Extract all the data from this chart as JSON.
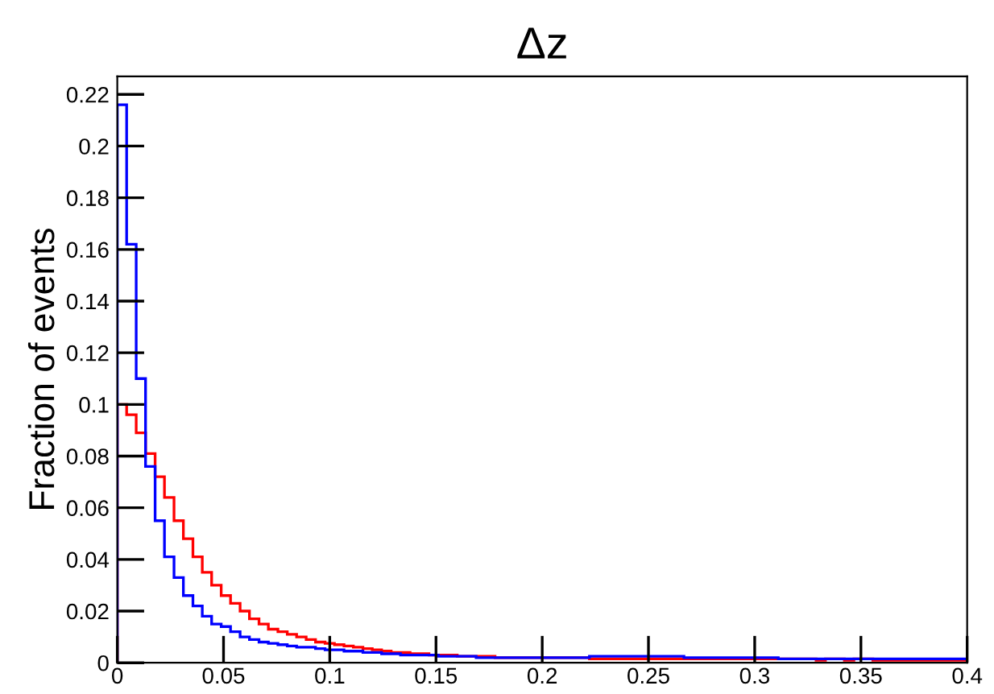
{
  "chart_data": {
    "type": "histogram",
    "title": "Δz",
    "ylabel": "Fraction of events",
    "bins": [
      0,
      0.0044,
      0.0089,
      0.0133,
      0.0178,
      0.0222,
      0.0267,
      0.0311,
      0.0356,
      0.04,
      0.0444,
      0.0489,
      0.0533,
      0.0578,
      0.0622,
      0.0667,
      0.0711,
      0.0756,
      0.08,
      0.0844,
      0.0889,
      0.0933,
      0.0978,
      0.1022,
      0.1067,
      0.1111,
      0.1156,
      0.12,
      0.1244,
      0.1289,
      0.1333,
      0.1378,
      0.1422,
      0.1467,
      0.1511,
      0.1556,
      0.16,
      0.1644,
      0.1689,
      0.1733,
      0.1778,
      0.1822,
      0.1867,
      0.1911,
      0.1956,
      0.2,
      0.2044,
      0.2089,
      0.2133,
      0.2178,
      0.2222,
      0.2267,
      0.2311,
      0.2356,
      0.24,
      0.2444,
      0.2489,
      0.2533,
      0.2578,
      0.2622,
      0.2667,
      0.2711,
      0.2756,
      0.28,
      0.2844,
      0.2889,
      0.2933,
      0.2978,
      0.3022,
      0.3067,
      0.3111,
      0.3156,
      0.32,
      0.3244,
      0.3289,
      0.3333,
      0.3378,
      0.3422,
      0.3467,
      0.3511,
      0.3556,
      0.36,
      0.3644,
      0.3689,
      0.3733,
      0.3778,
      0.3822,
      0.3867,
      0.3911,
      0.3956,
      0.4
    ],
    "series": [
      {
        "color": "#ff0000",
        "values": [
          0.1,
          0.096,
          0.089,
          0.081,
          0.072,
          0.064,
          0.055,
          0.048,
          0.041,
          0.035,
          0.03,
          0.026,
          0.023,
          0.02,
          0.017,
          0.015,
          0.013,
          0.012,
          0.011,
          0.01,
          0.009,
          0.008,
          0.0075,
          0.007,
          0.0065,
          0.006,
          0.0055,
          0.005,
          0.0045,
          0.004,
          0.004,
          0.0035,
          0.0035,
          0.003,
          0.003,
          0.003,
          0.0025,
          0.0025,
          0.0025,
          0.0025,
          0.002,
          0.002,
          0.002,
          0.002,
          0.002,
          0.002,
          0.002,
          0.002,
          0.002,
          0.002,
          0.0015,
          0.0015,
          0.0015,
          0.0015,
          0.0015,
          0.0015,
          0.0015,
          0.0015,
          0.0015,
          0.0015,
          0.0015,
          0.0015,
          0.0015,
          0.0015,
          0.0015,
          0.0015,
          0.0015,
          0.0015,
          0.0015,
          0.0015,
          0.0015,
          0.0015,
          0.0015,
          0.0015,
          0.001,
          0.0015,
          0.0015,
          0.001,
          0.0015,
          0.0015,
          0.001,
          0.001,
          0.001,
          0.001,
          0.001,
          0.001,
          0.001,
          0.001,
          0.001,
          0.001
        ]
      },
      {
        "color": "#0000ff",
        "values": [
          0.216,
          0.162,
          0.11,
          0.076,
          0.055,
          0.041,
          0.033,
          0.026,
          0.022,
          0.018,
          0.015,
          0.014,
          0.012,
          0.01,
          0.009,
          0.008,
          0.0075,
          0.007,
          0.0065,
          0.006,
          0.006,
          0.0055,
          0.005,
          0.005,
          0.0045,
          0.0045,
          0.004,
          0.004,
          0.0035,
          0.0035,
          0.003,
          0.003,
          0.003,
          0.003,
          0.0025,
          0.0025,
          0.0025,
          0.0025,
          0.002,
          0.002,
          0.002,
          0.002,
          0.002,
          0.002,
          0.002,
          0.002,
          0.002,
          0.002,
          0.002,
          0.002,
          0.0025,
          0.0025,
          0.0025,
          0.0025,
          0.0025,
          0.0025,
          0.0025,
          0.0025,
          0.0025,
          0.0025,
          0.002,
          0.002,
          0.002,
          0.002,
          0.002,
          0.002,
          0.002,
          0.002,
          0.002,
          0.002,
          0.0015,
          0.0015,
          0.0015,
          0.0015,
          0.0015,
          0.0015,
          0.0015,
          0.0015,
          0.0015,
          0.0015,
          0.0015,
          0.0015,
          0.0015,
          0.0015,
          0.0015,
          0.0015,
          0.0015,
          0.0015,
          0.0015,
          0.0015
        ]
      }
    ],
    "xlim": [
      0,
      0.4
    ],
    "ylim": [
      0,
      0.227
    ],
    "xticks": [
      0,
      0.05,
      0.1,
      0.15,
      0.2,
      0.25,
      0.3,
      0.35,
      0.4
    ],
    "yticks": [
      0,
      0.02,
      0.04,
      0.06,
      0.08,
      0.1,
      0.12,
      0.14,
      0.16,
      0.18,
      0.2,
      0.22
    ],
    "grid": false,
    "legend": false
  }
}
